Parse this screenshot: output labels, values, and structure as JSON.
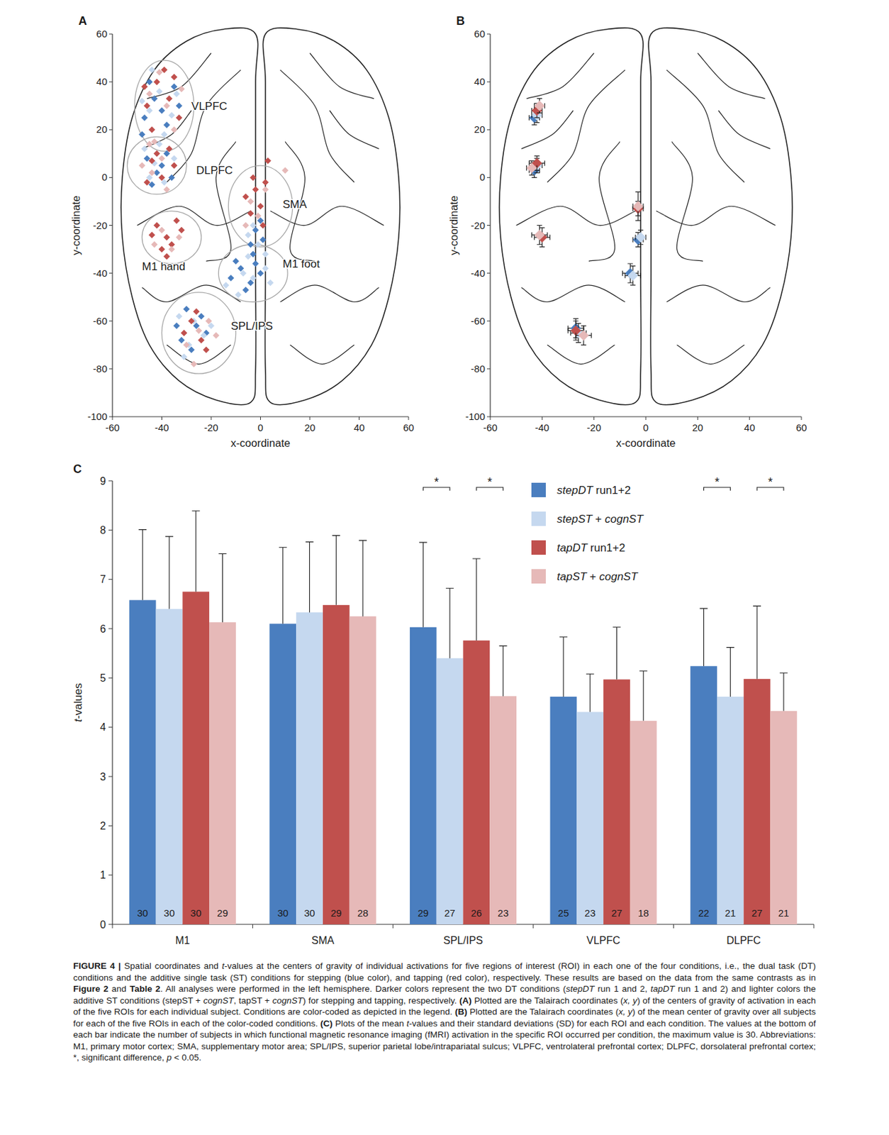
{
  "chart_data": [
    {
      "type": "scatter",
      "panel": "A",
      "xlabel": "x-coordinate",
      "ylabel": "y-coordinate",
      "xlim": [
        -60,
        60
      ],
      "ylim": [
        -100,
        60
      ],
      "xticks": [
        -60,
        -40,
        -20,
        0,
        20,
        40,
        60
      ],
      "yticks": [
        -100,
        -80,
        -60,
        -40,
        -20,
        0,
        20,
        40,
        60
      ],
      "regions": [
        {
          "label": "VLPFC",
          "center": [
            -39,
            30
          ],
          "radii": [
            12,
            19
          ],
          "label_at": [
            -28,
            30
          ]
        },
        {
          "label": "DLPFC",
          "center": [
            -42,
            5
          ],
          "radii": [
            12,
            12
          ],
          "label_at": [
            -26,
            3
          ]
        },
        {
          "label": "SMA",
          "center": [
            0,
            -12
          ],
          "radii": [
            13,
            17
          ],
          "label_at": [
            9,
            -11
          ]
        },
        {
          "label": "M1 hand",
          "center": [
            -36,
            -25
          ],
          "radii": [
            12,
            11
          ],
          "label_at": [
            -48,
            -37
          ]
        },
        {
          "label": "M1 foot",
          "center": [
            -3,
            -40
          ],
          "radii": [
            14,
            12
          ],
          "label_at": [
            9,
            -36
          ]
        },
        {
          "label": "SPL/IPS",
          "center": [
            -25,
            -65
          ],
          "radii": [
            15,
            17
          ],
          "label_at": [
            -12,
            -62
          ]
        }
      ],
      "series": [
        {
          "color": "#4a7ebf",
          "marker": "diamond",
          "x": [
            -47,
            -43,
            -38,
            -35,
            -45,
            -40,
            -33,
            -48,
            -46,
            -42,
            -38,
            -44,
            -40,
            -36,
            -2,
            -4,
            0,
            -3,
            1,
            -8,
            -4,
            -12,
            -2,
            -6,
            -10,
            0,
            -30,
            -26,
            -32,
            -24,
            -28,
            -22,
            -34
          ],
          "y": [
            25,
            33,
            22,
            38,
            40,
            28,
            30,
            18,
            8,
            2,
            10,
            -3,
            5,
            0,
            -22,
            -28,
            -18,
            -32,
            -26,
            -38,
            -44,
            -42,
            -36,
            -47,
            -35,
            -40,
            -55,
            -62,
            -68,
            -58,
            -72,
            -65,
            -62
          ]
        },
        {
          "color": "#c5d8ef",
          "marker": "diamond",
          "x": [
            -45,
            -41,
            -36,
            -48,
            -39,
            -34,
            -44,
            -47,
            -43,
            -39,
            -35,
            -45,
            -41,
            -1,
            -5,
            2,
            -3,
            -3,
            -7,
            -14,
            2,
            -9,
            -5,
            4,
            -27,
            -33,
            -23,
            -29,
            -20,
            -31
          ],
          "y": [
            28,
            36,
            26,
            32,
            18,
            35,
            45,
            12,
            6,
            -2,
            8,
            0,
            14,
            -28,
            -24,
            -32,
            -20,
            -42,
            -40,
            -45,
            -38,
            -49,
            -33,
            -44,
            -60,
            -58,
            -66,
            -70,
            -62,
            -75
          ]
        },
        {
          "color": "#c0504d",
          "marker": "diamond",
          "x": [
            -46,
            -42,
            -37,
            -33,
            -44,
            -39,
            -35,
            -47,
            -44,
            -40,
            -37,
            -46,
            -42,
            -35,
            -2,
            0,
            -4,
            2,
            -6,
            1,
            -3,
            3,
            -42,
            -38,
            -34,
            -40,
            -36,
            -44,
            -32,
            -38,
            -28,
            -24,
            -31,
            -26,
            -22
          ],
          "y": [
            30,
            40,
            33,
            25,
            20,
            45,
            42,
            38,
            7,
            0,
            12,
            -2,
            10,
            5,
            -5,
            -12,
            -15,
            -2,
            -8,
            -20,
            0,
            7,
            -20,
            -25,
            -18,
            -30,
            -28,
            -24,
            -22,
            -33,
            -60,
            -68,
            -65,
            -56,
            -72
          ]
        },
        {
          "color": "#e6b9b8",
          "marker": "diamond",
          "x": [
            -41,
            -38,
            -45,
            -35,
            -43,
            -32,
            -48,
            -44,
            -40,
            -38,
            -45,
            -4,
            -1,
            2,
            -6,
            10,
            -40,
            -36,
            -43,
            -33,
            -25,
            -30,
            -21,
            -27,
            -18
          ],
          "y": [
            44,
            30,
            35,
            20,
            15,
            37,
            5,
            2,
            8,
            -5,
            14,
            -10,
            -16,
            -5,
            -20,
            3,
            -22,
            -30,
            -28,
            -25,
            -64,
            -70,
            -60,
            -78,
            -66
          ]
        }
      ]
    },
    {
      "type": "scatter",
      "panel": "B",
      "xlabel": "x-coordinate",
      "ylabel": "y-coordinate",
      "xlim": [
        -60,
        60
      ],
      "ylim": [
        -100,
        60
      ],
      "xticks": [
        -60,
        -40,
        -20,
        0,
        20,
        40,
        60
      ],
      "yticks": [
        -100,
        -80,
        -60,
        -40,
        -20,
        0,
        20,
        40,
        60
      ],
      "series": [
        {
          "color": "#4a7ebf",
          "marker": "diamond",
          "x": [
            -6,
            -3,
            -27,
            -43,
            -43
          ],
          "y": [
            -40,
            -26,
            -63,
            25,
            3
          ],
          "x_err": [
            3,
            2,
            3,
            2,
            2
          ],
          "y_err": [
            4,
            3,
            4,
            3,
            3
          ]
        },
        {
          "color": "#c5d8ef",
          "marker": "diamond",
          "x": [
            -5,
            -2,
            -26,
            -42,
            -42
          ],
          "y": [
            -41,
            -25,
            -65,
            26,
            5
          ],
          "x_err": [
            3,
            2,
            3,
            2,
            2
          ],
          "y_err": [
            4,
            3,
            4,
            3,
            3
          ]
        },
        {
          "color": "#c0504d",
          "marker": "diamond",
          "x": [
            -40,
            -3,
            -27,
            -42,
            -42
          ],
          "y": [
            -25,
            -13,
            -64,
            28,
            6
          ],
          "x_err": [
            3,
            2,
            3,
            2,
            3
          ],
          "y_err": [
            4,
            3,
            4,
            3,
            3
          ]
        },
        {
          "color": "#e6b9b8",
          "marker": "diamond",
          "x": [
            -41,
            -3,
            -24,
            -41,
            -44
          ],
          "y": [
            -24,
            -12,
            -66,
            30,
            4
          ],
          "x_err": [
            3,
            2,
            3,
            2,
            2
          ],
          "y_err": [
            4,
            6,
            4,
            3,
            3
          ]
        }
      ]
    },
    {
      "type": "bar",
      "panel": "C",
      "ylabel": "t-values",
      "categories": [
        "M1",
        "SMA",
        "SPL/IPS",
        "VLPFC",
        "DLPFC"
      ],
      "ylim": [
        0,
        9
      ],
      "yticks": [
        0,
        1,
        2,
        3,
        4,
        5,
        6,
        7,
        8,
        9
      ],
      "legend": "top-right",
      "series": [
        {
          "name": "stepDT run1+2",
          "color": "#4a7ebf",
          "values": [
            6.58,
            6.1,
            6.03,
            4.62,
            5.24
          ],
          "sd": [
            1.43,
            1.55,
            1.72,
            1.21,
            1.17
          ],
          "n": [
            30,
            30,
            29,
            25,
            22
          ]
        },
        {
          "name": "stepST + cognST",
          "color": "#c5d8ef",
          "values": [
            6.4,
            6.33,
            5.4,
            4.31,
            4.62
          ],
          "sd": [
            1.47,
            1.43,
            1.42,
            0.77,
            1.0
          ],
          "n": [
            30,
            30,
            27,
            23,
            21
          ]
        },
        {
          "name": "tapDT run1+2",
          "color": "#c0504d",
          "values": [
            6.75,
            6.48,
            5.76,
            4.97,
            4.98
          ],
          "sd": [
            1.64,
            1.41,
            1.66,
            1.06,
            1.48
          ],
          "n": [
            30,
            29,
            26,
            27,
            27
          ]
        },
        {
          "name": "tapST + cognST",
          "color": "#e6b9b8",
          "values": [
            6.13,
            6.25,
            4.63,
            4.13,
            4.33
          ],
          "sd": [
            1.39,
            1.54,
            1.02,
            1.01,
            0.77
          ],
          "n": [
            29,
            28,
            23,
            18,
            21
          ]
        }
      ],
      "significance": [
        {
          "category": 2,
          "series": [
            0,
            1
          ],
          "label": "*"
        },
        {
          "category": 2,
          "series": [
            2,
            3
          ],
          "label": "*"
        },
        {
          "category": 4,
          "series": [
            0,
            1
          ],
          "label": "*"
        },
        {
          "category": 4,
          "series": [
            2,
            3
          ],
          "label": "*"
        }
      ]
    }
  ],
  "caption": {
    "runs": [
      {
        "text": "FIGURE 4 | ",
        "bold": true
      },
      {
        "text": "Spatial coordinates and "
      },
      {
        "text": "t",
        "italic": true
      },
      {
        "text": "-values at the centers of gravity of individual activations for five regions of interest (ROI) in each one of the four conditions, i.e., the dual task (DT) conditions and the additive single task (ST) conditions for stepping (blue color), and tapping (red color), respectively. These results are based on the data from the same contrasts as in "
      },
      {
        "text": "Figure 2",
        "bold": true
      },
      {
        "text": " and "
      },
      {
        "text": "Table 2",
        "bold": true
      },
      {
        "text": ". All analyses were performed in the left hemisphere. Darker colors represent the two DT conditions ("
      },
      {
        "text": "stepDT",
        "italic": true
      },
      {
        "text": " run 1 and 2, "
      },
      {
        "text": "tapDT",
        "italic": true
      },
      {
        "text": " run 1 and 2) and lighter colors the additive ST conditions (stepST + "
      },
      {
        "text": "cognST",
        "italic": true
      },
      {
        "text": ", tapST + "
      },
      {
        "text": "cognST",
        "italic": true
      },
      {
        "text": ") for stepping and tapping, respectively. "
      },
      {
        "text": "(A)",
        "bold": true
      },
      {
        "text": " Plotted are the Talairach coordinates ("
      },
      {
        "text": "x, y",
        "italic": true
      },
      {
        "text": ") of the centers of gravity of activation in each of the five ROIs for each individual subject. Conditions are color-coded as depicted in the legend. "
      },
      {
        "text": "(B)",
        "bold": true
      },
      {
        "text": " Plotted are the Talairach coordinates ("
      },
      {
        "text": "x, y",
        "italic": true
      },
      {
        "text": ") of the mean center of gravity over all subjects for each of the five ROIs in each of the color-coded conditions. "
      },
      {
        "text": "(C)",
        "bold": true
      },
      {
        "text": " Plots of the mean "
      },
      {
        "text": "t",
        "italic": true
      },
      {
        "text": "-values and their standard deviations (SD) for each ROI and each condition. The values at the bottom of each bar indicate the number of subjects in which functional magnetic resonance imaging (fMRI) activation in the specific ROI occurred per condition, the maximum value is 30. Abbreviations: M1, primary motor cortex; SMA, supplementary motor area; SPL/IPS, superior parietal lobe/intrapariatal sulcus; VLPFC, ventrolateral prefrontal cortex; DLPFC, dorsolateral prefrontal cortex; *, significant difference, "
      },
      {
        "text": "p",
        "italic": true
      },
      {
        "text": " < 0.05."
      }
    ]
  }
}
